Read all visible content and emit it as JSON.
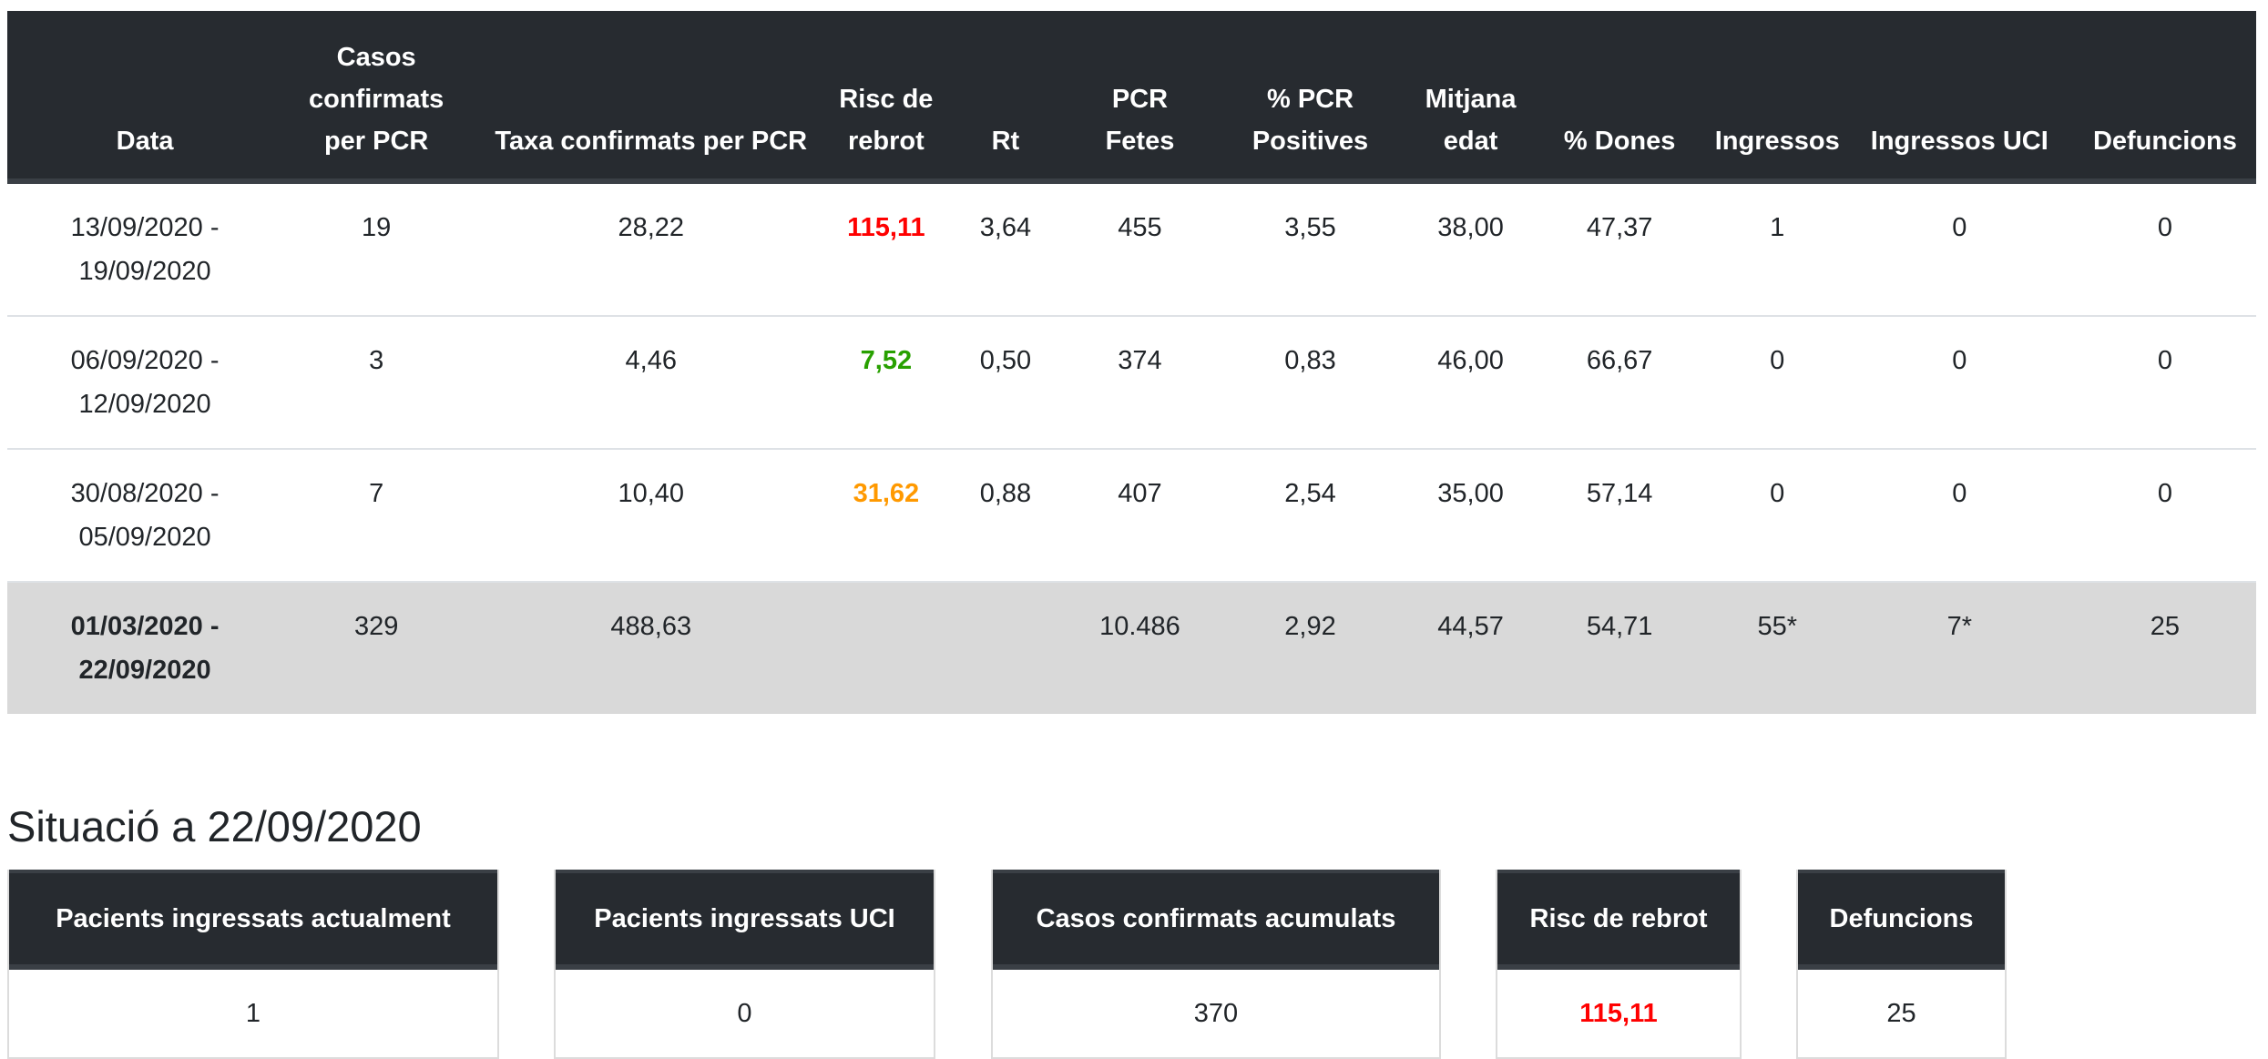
{
  "colors": {
    "header_bg": "#272b30",
    "risk_high": "#ff0000",
    "risk_low": "#28a000",
    "risk_medium": "#ff9900",
    "total_row_bg": "#d9d9d9"
  },
  "table": {
    "headers": [
      "Data",
      "Casos confirmats per PCR",
      "Taxa confirmats per PCR",
      "Risc de rebrot",
      "Rt",
      "PCR Fetes",
      "% PCR Positives",
      "Mitjana edat",
      "% Dones",
      "Ingressos",
      "Ingressos UCI",
      "Defuncions"
    ],
    "rows": [
      {
        "data": "13/09/2020 - 19/09/2020",
        "casos": "19",
        "taxa": "28,22",
        "risc": "115,11",
        "risc_level": "high",
        "rt": "3,64",
        "pcr": "455",
        "pct_pcr": "3,55",
        "edat": "38,00",
        "dones": "47,37",
        "ingressos": "1",
        "uci": "0",
        "defuncions": "0"
      },
      {
        "data": "06/09/2020 - 12/09/2020",
        "casos": "3",
        "taxa": "4,46",
        "risc": "7,52",
        "risc_level": "low",
        "rt": "0,50",
        "pcr": "374",
        "pct_pcr": "0,83",
        "edat": "46,00",
        "dones": "66,67",
        "ingressos": "0",
        "uci": "0",
        "defuncions": "0"
      },
      {
        "data": "30/08/2020 - 05/09/2020",
        "casos": "7",
        "taxa": "10,40",
        "risc": "31,62",
        "risc_level": "medium",
        "rt": "0,88",
        "pcr": "407",
        "pct_pcr": "2,54",
        "edat": "35,00",
        "dones": "57,14",
        "ingressos": "0",
        "uci": "0",
        "defuncions": "0"
      }
    ],
    "total": {
      "data": "01/03/2020 - 22/09/2020",
      "casos": "329",
      "taxa": "488,63",
      "risc": "",
      "rt": "",
      "pcr": "10.486",
      "pct_pcr": "2,92",
      "edat": "44,57",
      "dones": "54,71",
      "ingressos": "55*",
      "uci": "7*",
      "defuncions": "25"
    }
  },
  "situacio": {
    "title": "Situació a 22/09/2020",
    "cards": [
      {
        "label": "Pacients ingressats actualment",
        "value": "1"
      },
      {
        "label": "Pacients ingressats UCI",
        "value": "0"
      },
      {
        "label": "Casos confirmats acumulats",
        "value": "370"
      },
      {
        "label": "Risc de rebrot",
        "value": "115,11",
        "risc_level": "high"
      },
      {
        "label": "Defuncions",
        "value": "25"
      }
    ]
  }
}
